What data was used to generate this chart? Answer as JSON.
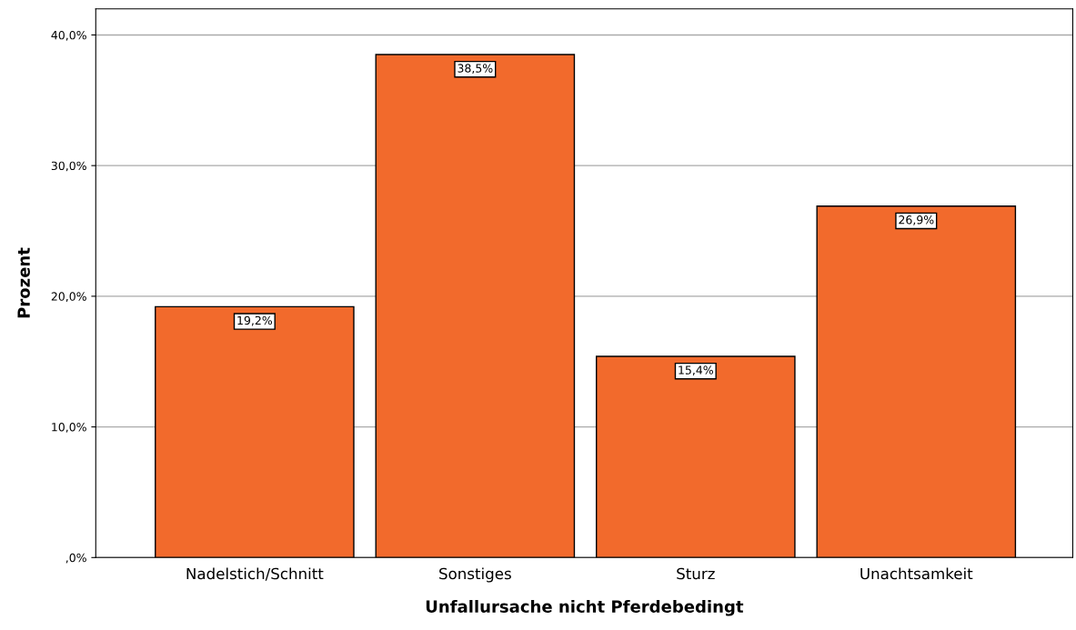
{
  "chart_data": {
    "type": "bar",
    "xlabel": "Unfallursache nicht Pferdebedingt",
    "ylabel": "Prozent",
    "categories": [
      "Nadelstich/Schnitt",
      "Sonstiges",
      "Sturz",
      "Unachtsamkeit"
    ],
    "values": [
      19.2,
      38.5,
      15.4,
      26.9
    ],
    "value_labels": [
      "19,2%",
      "38,5%",
      "15,4%",
      "26,9%"
    ],
    "color": "#f26a2c",
    "ylim": [
      0,
      42
    ],
    "yticks": [
      {
        "value": 0,
        "label": ",0%"
      },
      {
        "value": 10,
        "label": "10,0%"
      },
      {
        "value": 20,
        "label": "20,0%"
      },
      {
        "value": 30,
        "label": "30,0%"
      },
      {
        "value": 40,
        "label": "40,0%"
      }
    ],
    "grid": "y"
  }
}
